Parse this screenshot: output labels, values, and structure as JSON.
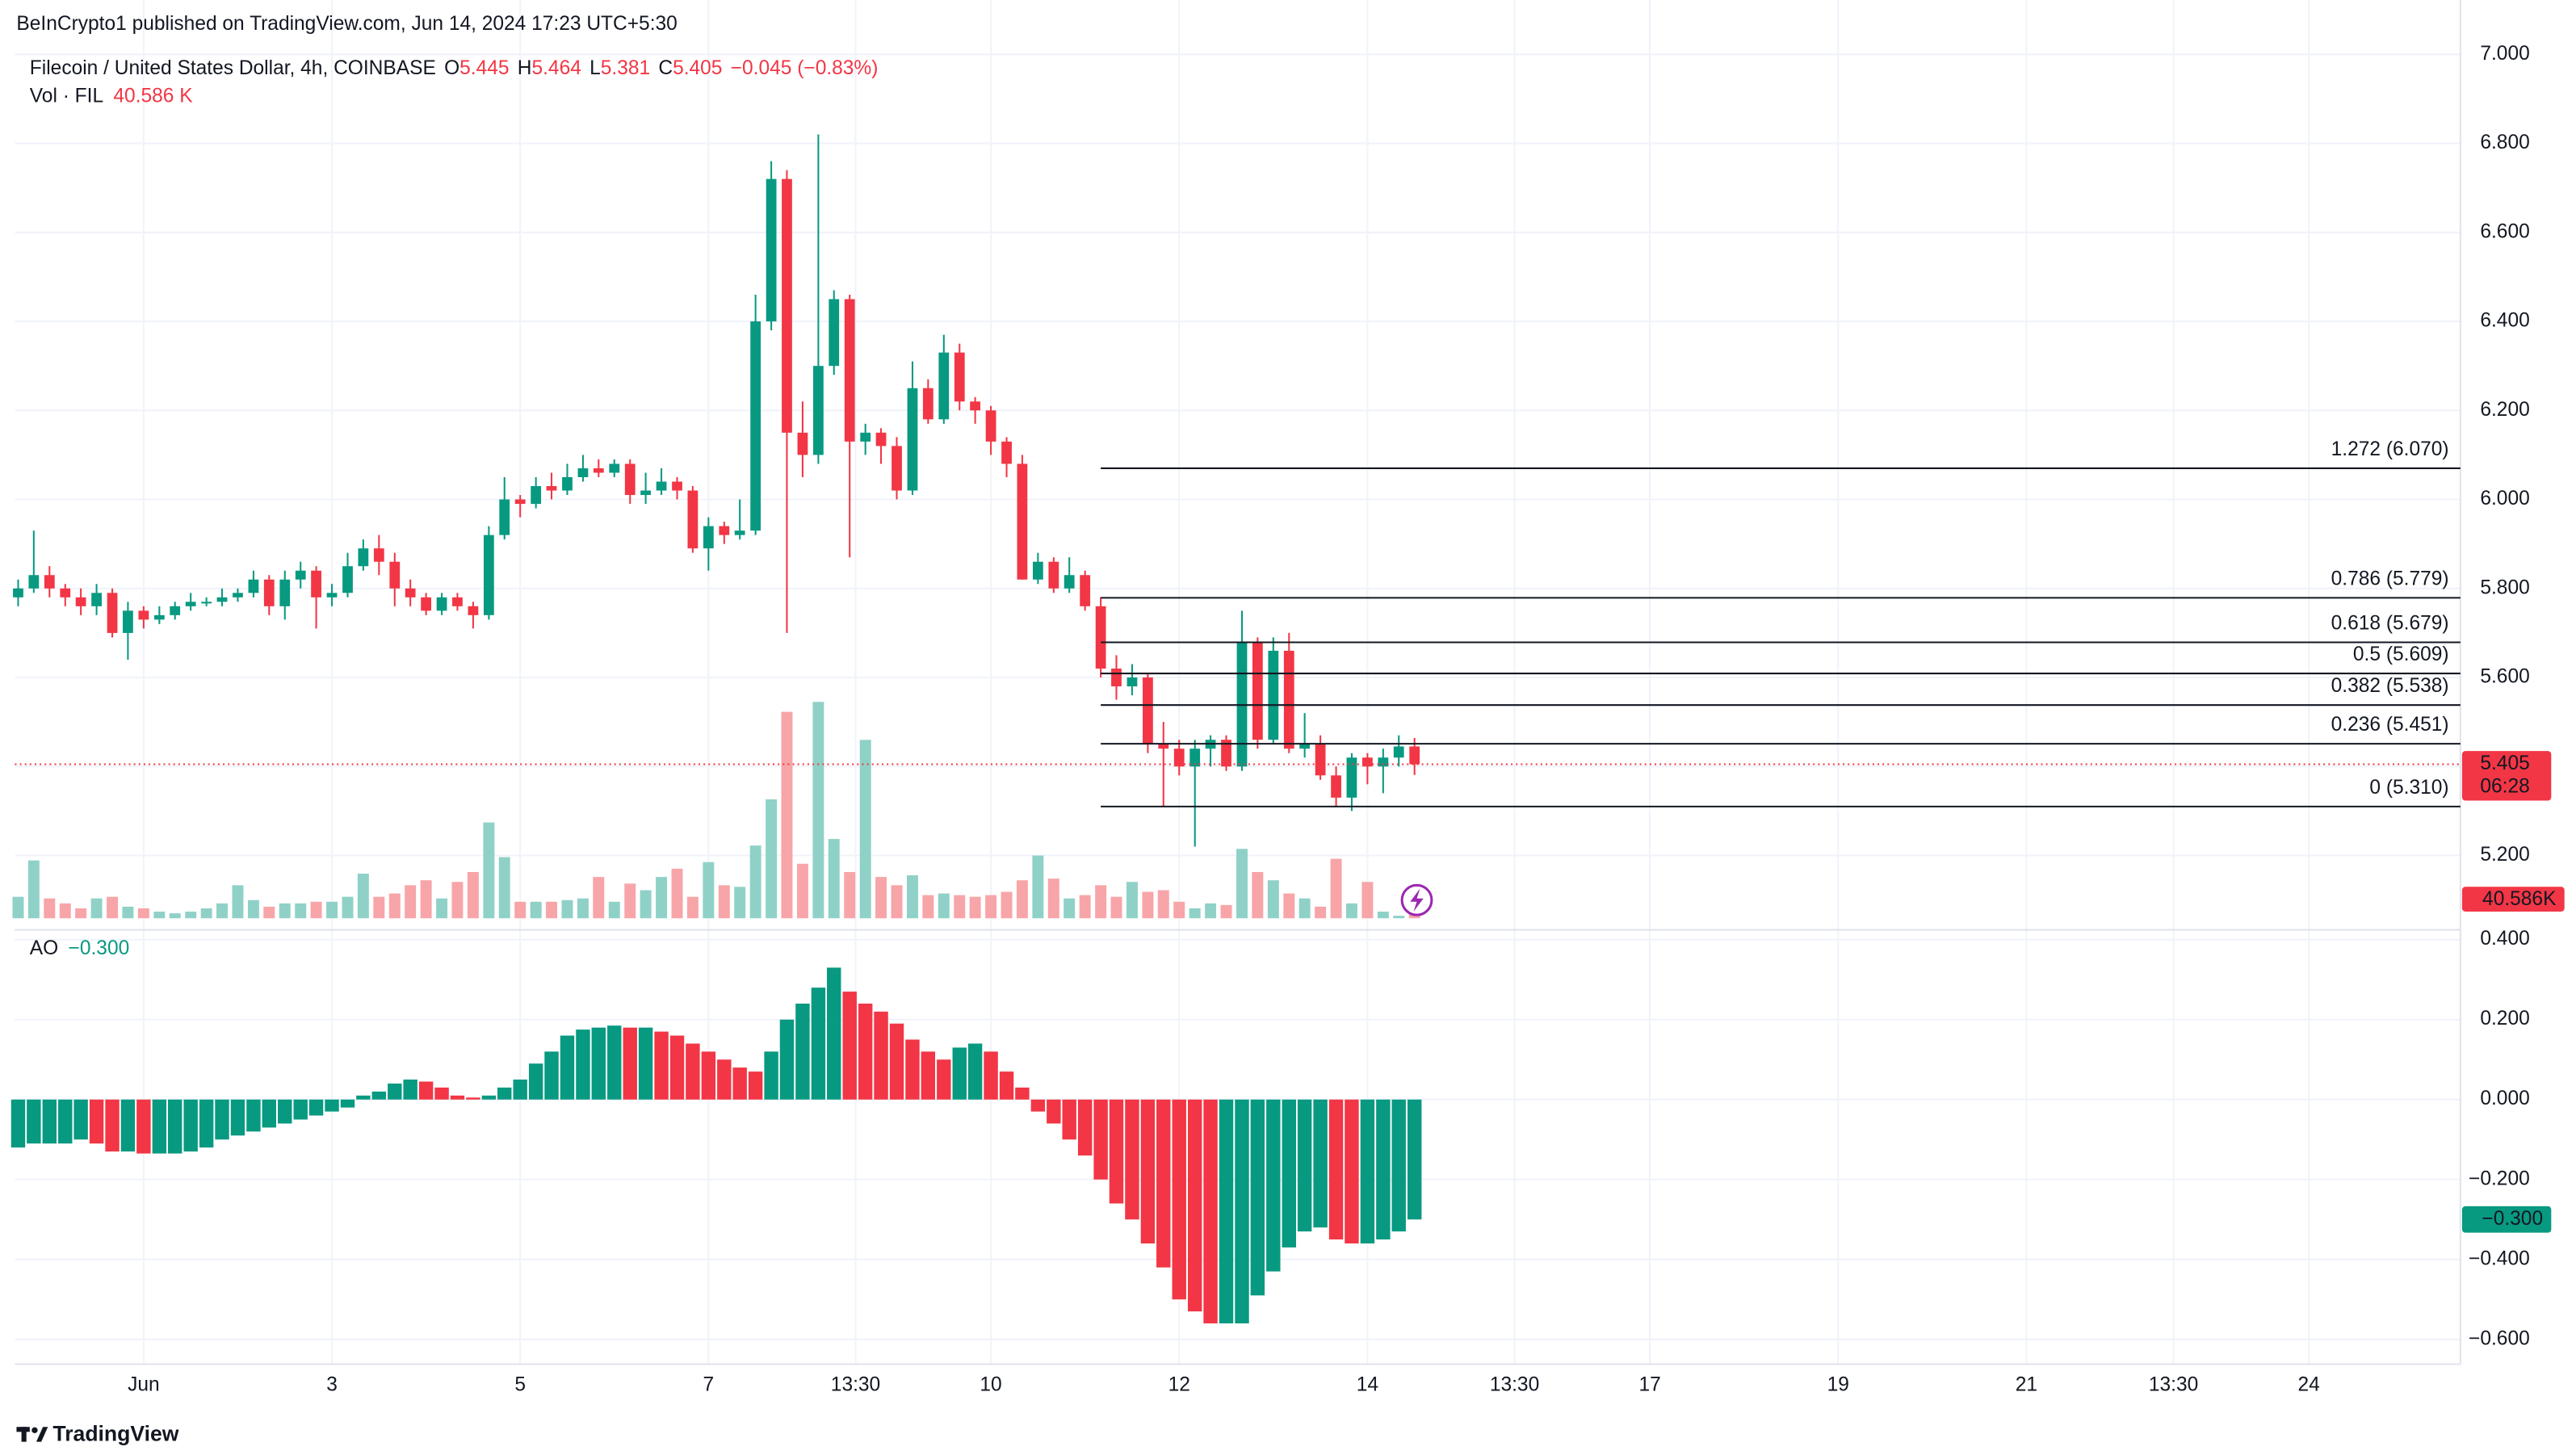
{
  "header": {
    "published": "BeInCrypto1 published on TradingView.com, Jun 14, 2024 17:23 UTC+5:30"
  },
  "footer": {
    "brand": "TradingView"
  },
  "chart_data": [
    {
      "type": "candlestick",
      "title": "Filecoin / United States Dollar, 4h, COINBASE",
      "legend": [
        {
          "name": "O",
          "value": "5.445"
        },
        {
          "name": "H",
          "value": "5.464"
        },
        {
          "name": "L",
          "value": "5.381"
        },
        {
          "name": "C",
          "value": "5.405"
        }
      ],
      "change": "−0.045 (−0.83%)",
      "up_color": "#089981",
      "down_color": "#f23645",
      "x": [
        -0.333,
        -0.167,
        0,
        0.167,
        0.333,
        0.5,
        0.667,
        0.833,
        1,
        1.167,
        1.333,
        1.5,
        1.667,
        1.833,
        2,
        2.167,
        2.333,
        2.5,
        2.667,
        2.833,
        3,
        3.167,
        3.333,
        3.5,
        3.667,
        3.833,
        4,
        4.167,
        4.333,
        4.5,
        4.667,
        4.833,
        5,
        5.167,
        5.333,
        5.5,
        5.667,
        5.833,
        6,
        6.167,
        6.333,
        6.5,
        6.667,
        6.833,
        7,
        7.167,
        7.333,
        7.5,
        7.667,
        7.833,
        8,
        8.167,
        8.333,
        8.5,
        8.667,
        8.833,
        9,
        9.167,
        9.333,
        9.5,
        9.667,
        9.833,
        10,
        10.167,
        10.333,
        10.5,
        10.667,
        10.833,
        11,
        11.167,
        11.333,
        11.5,
        11.667,
        11.833,
        12,
        12.167,
        12.333,
        12.5,
        12.667,
        12.833,
        13,
        13.167,
        13.333,
        13.5,
        13.667,
        13.833,
        14,
        14.167,
        14.333,
        14.5
      ],
      "open": [
        5.78,
        5.8,
        5.83,
        5.8,
        5.78,
        5.76,
        5.79,
        5.7,
        5.75,
        5.73,
        5.74,
        5.76,
        5.77,
        5.77,
        5.78,
        5.79,
        5.82,
        5.76,
        5.82,
        5.84,
        5.78,
        5.79,
        5.85,
        5.89,
        5.86,
        5.8,
        5.78,
        5.75,
        5.78,
        5.76,
        5.74,
        5.92,
        6.0,
        5.99,
        6.03,
        6.02,
        6.05,
        6.07,
        6.06,
        6.08,
        6.01,
        6.02,
        6.04,
        6.02,
        5.89,
        5.94,
        5.92,
        5.93,
        6.4,
        6.72,
        6.15,
        6.1,
        6.3,
        6.45,
        6.13,
        6.15,
        6.12,
        6.02,
        6.25,
        6.18,
        6.33,
        6.22,
        6.2,
        6.13,
        6.08,
        5.82,
        5.86,
        5.8,
        5.83,
        5.76,
        5.62,
        5.58,
        5.6,
        5.45,
        5.44,
        5.4,
        5.44,
        5.46,
        5.4,
        5.68,
        5.46,
        5.66,
        5.44,
        5.45,
        5.38,
        5.33,
        5.42,
        5.4,
        5.42,
        5.445
      ],
      "high": [
        5.82,
        5.93,
        5.85,
        5.81,
        5.8,
        5.81,
        5.8,
        5.77,
        5.76,
        5.76,
        5.77,
        5.79,
        5.78,
        5.8,
        5.8,
        5.84,
        5.83,
        5.84,
        5.86,
        5.85,
        5.81,
        5.88,
        5.91,
        5.92,
        5.88,
        5.82,
        5.79,
        5.79,
        5.79,
        5.77,
        5.94,
        6.05,
        6.01,
        6.05,
        6.06,
        6.08,
        6.1,
        6.09,
        6.09,
        6.09,
        6.06,
        6.07,
        6.05,
        6.03,
        5.96,
        5.95,
        6.0,
        6.46,
        6.76,
        6.74,
        6.22,
        6.82,
        6.47,
        6.46,
        6.17,
        6.16,
        6.14,
        6.31,
        6.27,
        6.37,
        6.35,
        6.23,
        6.21,
        6.14,
        6.1,
        5.88,
        5.87,
        5.87,
        5.84,
        5.78,
        5.65,
        5.63,
        5.61,
        5.5,
        5.46,
        5.46,
        5.47,
        5.47,
        5.75,
        5.69,
        5.69,
        5.7,
        5.52,
        5.47,
        5.4,
        5.43,
        5.43,
        5.44,
        5.47,
        5.464
      ],
      "low": [
        5.76,
        5.79,
        5.78,
        5.76,
        5.74,
        5.74,
        5.69,
        5.64,
        5.71,
        5.72,
        5.73,
        5.75,
        5.76,
        5.76,
        5.77,
        5.78,
        5.74,
        5.73,
        5.8,
        5.71,
        5.76,
        5.78,
        5.84,
        5.83,
        5.76,
        5.76,
        5.74,
        5.74,
        5.75,
        5.71,
        5.73,
        5.91,
        5.96,
        5.98,
        6.0,
        6.01,
        6.04,
        6.05,
        6.05,
        5.99,
        5.99,
        6.01,
        6.0,
        5.88,
        5.84,
        5.9,
        5.91,
        5.92,
        6.38,
        5.7,
        6.05,
        6.08,
        6.28,
        5.87,
        6.1,
        6.08,
        6.0,
        6.01,
        6.17,
        6.17,
        6.2,
        6.17,
        6.1,
        6.05,
        5.82,
        5.81,
        5.79,
        5.79,
        5.75,
        5.6,
        5.55,
        5.56,
        5.43,
        5.31,
        5.38,
        5.22,
        5.4,
        5.39,
        5.39,
        5.44,
        5.45,
        5.43,
        5.42,
        5.37,
        5.31,
        5.3,
        5.36,
        5.34,
        5.4,
        5.381
      ],
      "close": [
        5.8,
        5.83,
        5.8,
        5.78,
        5.76,
        5.79,
        5.7,
        5.75,
        5.73,
        5.74,
        5.76,
        5.77,
        5.77,
        5.78,
        5.79,
        5.82,
        5.76,
        5.82,
        5.84,
        5.78,
        5.79,
        5.85,
        5.89,
        5.86,
        5.8,
        5.78,
        5.75,
        5.78,
        5.76,
        5.74,
        5.92,
        6.0,
        5.99,
        6.03,
        6.02,
        6.05,
        6.07,
        6.06,
        6.08,
        6.01,
        6.02,
        6.04,
        6.02,
        5.89,
        5.94,
        5.92,
        5.93,
        6.4,
        6.72,
        6.15,
        6.1,
        6.3,
        6.45,
        6.13,
        6.15,
        6.12,
        6.02,
        6.25,
        6.18,
        6.33,
        6.22,
        6.2,
        6.13,
        6.08,
        5.82,
        5.86,
        5.8,
        5.83,
        5.76,
        5.62,
        5.58,
        5.6,
        5.45,
        5.44,
        5.4,
        5.44,
        5.46,
        5.4,
        5.68,
        5.46,
        5.66,
        5.44,
        5.45,
        5.38,
        5.33,
        5.42,
        5.4,
        5.42,
        5.445,
        5.405
      ],
      "xlim": [
        -0.368,
        25.61
      ],
      "xticks": [
        {
          "value": 1,
          "label": "Jun"
        },
        3,
        5,
        7,
        {
          "value": 8.5625,
          "label": "13:30"
        },
        10,
        12,
        14,
        {
          "value": 15.5625,
          "label": "13:30"
        },
        17,
        19,
        21,
        {
          "value": 22.5625,
          "label": "13:30"
        },
        24
      ],
      "ylim": [
        5.059,
        7.085
      ],
      "yticks": [
        {
          "value": 5.2,
          "label": "5.200"
        },
        {
          "value": 5.4,
          "label": "5.400"
        },
        {
          "value": 5.6,
          "label": "5.600"
        },
        {
          "value": 5.8,
          "label": "5.800"
        },
        {
          "value": 6.0,
          "label": "6.000"
        },
        {
          "value": 6.2,
          "label": "6.200"
        },
        {
          "value": 6.4,
          "label": "6.400"
        },
        {
          "value": 6.6,
          "label": "6.600"
        },
        {
          "value": 6.8,
          "label": "6.800"
        },
        {
          "value": 7.0,
          "label": "7.000"
        }
      ],
      "fib_start": 11.167,
      "fib": [
        {
          "label": "1.272 (6.070)",
          "value": 6.07
        },
        {
          "label": "0.786 (5.779)",
          "value": 5.779
        },
        {
          "label": "0.618 (5.679)",
          "value": 5.679
        },
        {
          "label": "0.5 (5.609)",
          "value": 5.609
        },
        {
          "label": "0.382 (5.538)",
          "value": 5.538
        },
        {
          "label": "0.236 (5.451)",
          "value": 5.451
        },
        {
          "label": "0 (5.310)",
          "value": 5.31
        }
      ],
      "last_price": {
        "value": 5.405,
        "label": "5.405"
      },
      "countdown": "06:28"
    },
    {
      "type": "bar",
      "title": "Vol · FIL",
      "last_label": "40.586 K",
      "tag_label": "40.586K",
      "up_color": "#8fd1c7",
      "down_color": "#f7a5a8",
      "ylim": [
        0,
        1500
      ],
      "values": [
        130,
        350,
        120,
        90,
        60,
        120,
        130,
        70,
        60,
        40,
        30,
        40,
        60,
        90,
        200,
        110,
        70,
        90,
        90,
        100,
        100,
        130,
        270,
        130,
        150,
        200,
        230,
        120,
        220,
        280,
        580,
        370,
        100,
        100,
        100,
        110,
        120,
        250,
        100,
        210,
        170,
        250,
        300,
        130,
        340,
        200,
        190,
        440,
        720,
        1250,
        330,
        1310,
        480,
        280,
        1080,
        250,
        200,
        260,
        140,
        150,
        140,
        130,
        140,
        160,
        230,
        380,
        240,
        120,
        140,
        200,
        130,
        220,
        160,
        170,
        100,
        60,
        90,
        80,
        420,
        280,
        230,
        150,
        120,
        70,
        360,
        90,
        220,
        40,
        15,
        40.586
      ]
    },
    {
      "type": "bar",
      "title": "AO",
      "last_label": "−0.300",
      "up_color": "#089981",
      "down_color": "#f23645",
      "values": [
        -0.12,
        -0.11,
        -0.11,
        -0.11,
        -0.1,
        -0.11,
        -0.13,
        -0.13,
        -0.135,
        -0.135,
        -0.135,
        -0.13,
        -0.12,
        -0.1,
        -0.09,
        -0.08,
        -0.07,
        -0.06,
        -0.05,
        -0.04,
        -0.03,
        -0.02,
        0.01,
        0.02,
        0.04,
        0.05,
        0.045,
        0.03,
        0.01,
        0.005,
        0.01,
        0.03,
        0.05,
        0.09,
        0.12,
        0.16,
        0.175,
        0.18,
        0.185,
        0.18,
        0.18,
        0.17,
        0.16,
        0.14,
        0.12,
        0.1,
        0.08,
        0.07,
        0.12,
        0.2,
        0.24,
        0.28,
        0.33,
        0.27,
        0.24,
        0.22,
        0.19,
        0.15,
        0.12,
        0.1,
        0.13,
        0.14,
        0.12,
        0.07,
        0.03,
        -0.03,
        -0.06,
        -0.1,
        -0.14,
        -0.2,
        -0.26,
        -0.3,
        -0.36,
        -0.42,
        -0.5,
        -0.53,
        -0.56,
        -0.56,
        -0.56,
        -0.49,
        -0.43,
        -0.37,
        -0.33,
        -0.32,
        -0.35,
        -0.36,
        -0.36,
        -0.35,
        -0.33,
        -0.3
      ],
      "ylim": [
        -0.662,
        0.437
      ],
      "yticks": [
        {
          "value": -0.6,
          "label": "−0.600"
        },
        {
          "value": -0.4,
          "label": "−0.400"
        },
        {
          "value": -0.2,
          "label": "−0.200"
        },
        {
          "value": 0,
          "label": "0.000"
        },
        {
          "value": 0.2,
          "label": "0.200"
        },
        {
          "value": 0.4,
          "label": "0.400"
        }
      ]
    }
  ]
}
